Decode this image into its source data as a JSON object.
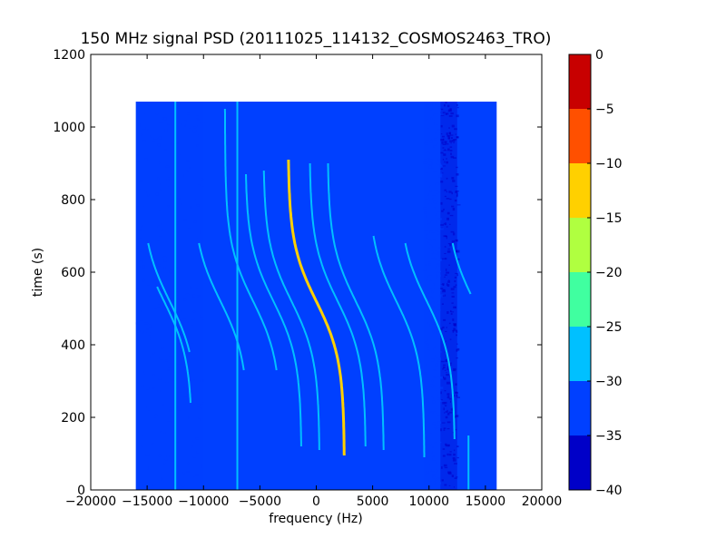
{
  "chart_data": {
    "type": "heatmap",
    "title": "150 MHz signal PSD (20111025_114132_COSMOS2463_TRO)",
    "xlabel": "frequency (Hz)",
    "ylabel": "time (s)",
    "xlim": [
      -20000,
      20000
    ],
    "ylim": [
      0,
      1200
    ],
    "xticks": [
      -20000,
      -15000,
      -10000,
      -5000,
      0,
      5000,
      10000,
      15000,
      20000
    ],
    "xtick_labels": [
      "−20000",
      "−15000",
      "−10000",
      "−5000",
      "0",
      "5000",
      "10000",
      "15000",
      "20000"
    ],
    "yticks": [
      0,
      200,
      400,
      600,
      800,
      1000,
      1200
    ],
    "ytick_labels": [
      "0",
      "200",
      "400",
      "600",
      "800",
      "1000",
      "1200"
    ],
    "data_extent": {
      "x": [
        -16000,
        16000
      ],
      "y": [
        0,
        1070
      ]
    },
    "background_level": -35,
    "colorbar": {
      "levels": [
        -40,
        -35,
        -30,
        -25,
        -20,
        -15,
        -10,
        -5,
        0
      ],
      "tick_labels": [
        "−40",
        "−35",
        "−30",
        "−25",
        "−20",
        "−15",
        "−10",
        "−5",
        "0"
      ],
      "colors": [
        "#0000c8",
        "#0040ff",
        "#00c0ff",
        "#40ffa0",
        "#b0ff40",
        "#ffd000",
        "#ff5000",
        "#c80000"
      ]
    },
    "vertical_lines": [
      {
        "freq": -12500,
        "t_from": 0,
        "t_to": 1070,
        "level": -30
      },
      {
        "freq": -7000,
        "t_from": 0,
        "t_to": 1070,
        "level": -30
      },
      {
        "freq": 13500,
        "t_from": 0,
        "t_to": 150,
        "level": -30
      }
    ],
    "noise_bands": [
      {
        "freq_from": 11000,
        "freq_to": 12500,
        "level": -38
      },
      {
        "freq_from": 9500,
        "freq_to": 11000,
        "level": -33
      },
      {
        "freq_from": -16000,
        "freq_to": -10000,
        "level": -33
      }
    ],
    "doppler_curves": [
      {
        "offset": 0,
        "t_top": 910,
        "t_bottom": 95,
        "level": -15
      },
      {
        "offset": -3800,
        "t_top": 870,
        "t_bottom": 120,
        "level": -30
      },
      {
        "offset": -2200,
        "t_top": 880,
        "t_bottom": 110,
        "level": -30
      },
      {
        "offset": 1900,
        "t_top": 900,
        "t_bottom": 120,
        "level": -30
      },
      {
        "offset": 3500,
        "t_top": 900,
        "t_bottom": 110,
        "level": -30
      },
      {
        "offset": 7100,
        "t_top": 700,
        "t_bottom": 90,
        "level": -30
      },
      {
        "offset": 9800,
        "t_top": 680,
        "t_bottom": 140,
        "level": -30
      },
      {
        "offset": -5600,
        "t_top": 1050,
        "t_bottom": 330,
        "level": -30
      },
      {
        "offset": -8500,
        "t_top": 680,
        "t_bottom": 330,
        "level": -30
      },
      {
        "offset": -13000,
        "t_top": 680,
        "t_bottom": 380,
        "level": -30
      },
      {
        "offset": -13500,
        "t_top": 560,
        "t_bottom": 240,
        "level": -30
      },
      {
        "offset": 14000,
        "t_top": 680,
        "t_bottom": 540,
        "level": -30
      }
    ]
  }
}
